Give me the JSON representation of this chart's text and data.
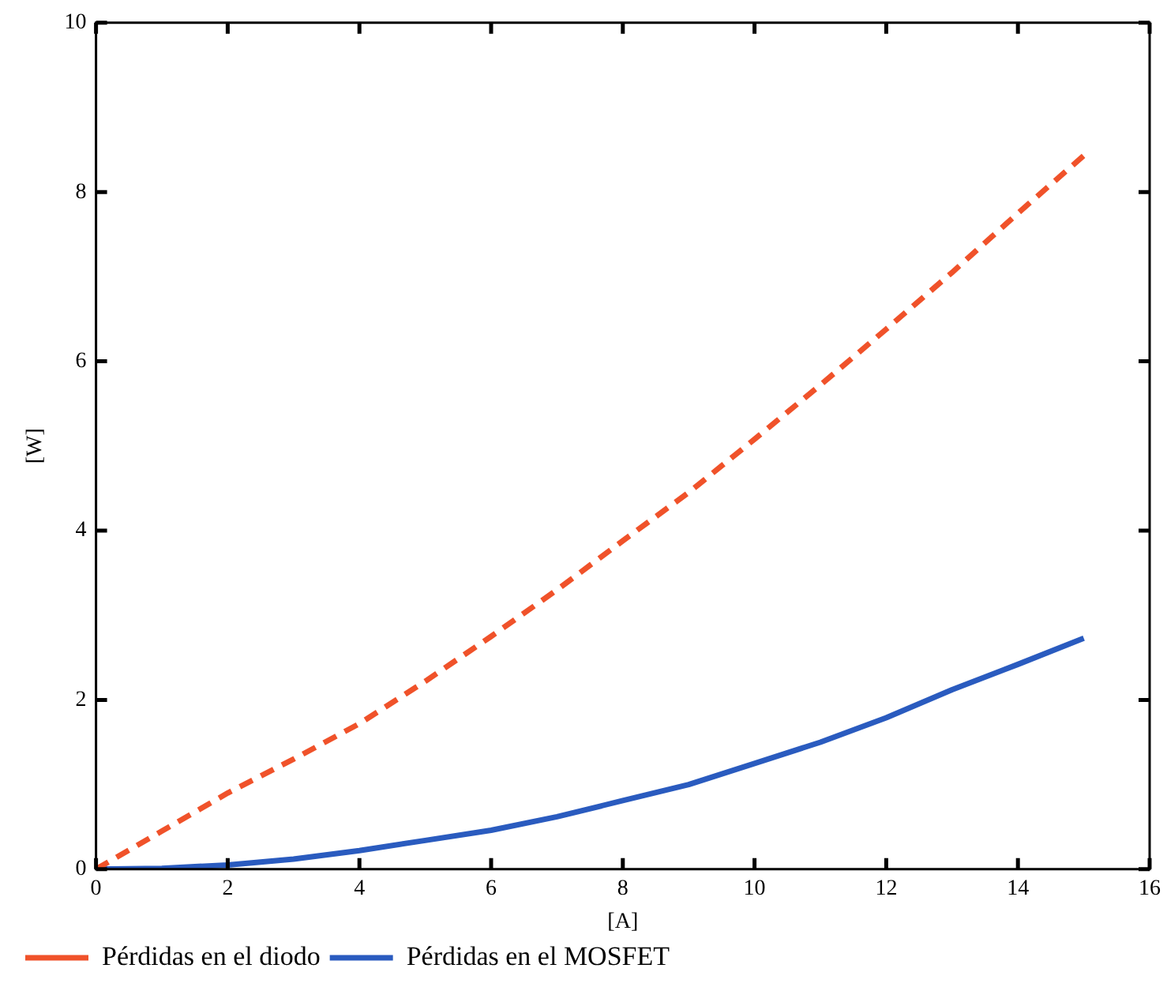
{
  "chart_data": {
    "type": "line",
    "xlabel": "[A]",
    "ylabel": "[W]",
    "x": [
      0,
      1,
      2,
      3,
      4,
      5,
      6,
      7,
      8,
      9,
      10,
      11,
      12,
      13,
      14,
      15
    ],
    "xlim": [
      0,
      16
    ],
    "xticks": [
      0,
      2,
      4,
      6,
      8,
      10,
      12,
      14,
      16
    ],
    "ylim": [
      0,
      10
    ],
    "yticks": [
      0,
      2,
      4,
      6,
      8,
      10
    ],
    "legend": "bottom left",
    "marker": "none",
    "series": [
      {
        "name": "Pérdidas en el diodo",
        "color": "#f0522a",
        "line_style": "dashed",
        "values": [
          0,
          0.45,
          0.9,
          1.3,
          1.72,
          2.22,
          2.75,
          3.3,
          3.88,
          4.45,
          5.08,
          5.72,
          6.38,
          7.05,
          7.75,
          8.43
        ]
      },
      {
        "name": "Pérdidas en el MOSFET",
        "color": "#2a5bbf",
        "line_style": "solid",
        "values": [
          0,
          0.01,
          0.05,
          0.12,
          0.22,
          0.34,
          0.46,
          0.62,
          0.81,
          1.0,
          1.25,
          1.5,
          1.79,
          2.12,
          2.42,
          2.73
        ]
      }
    ]
  }
}
